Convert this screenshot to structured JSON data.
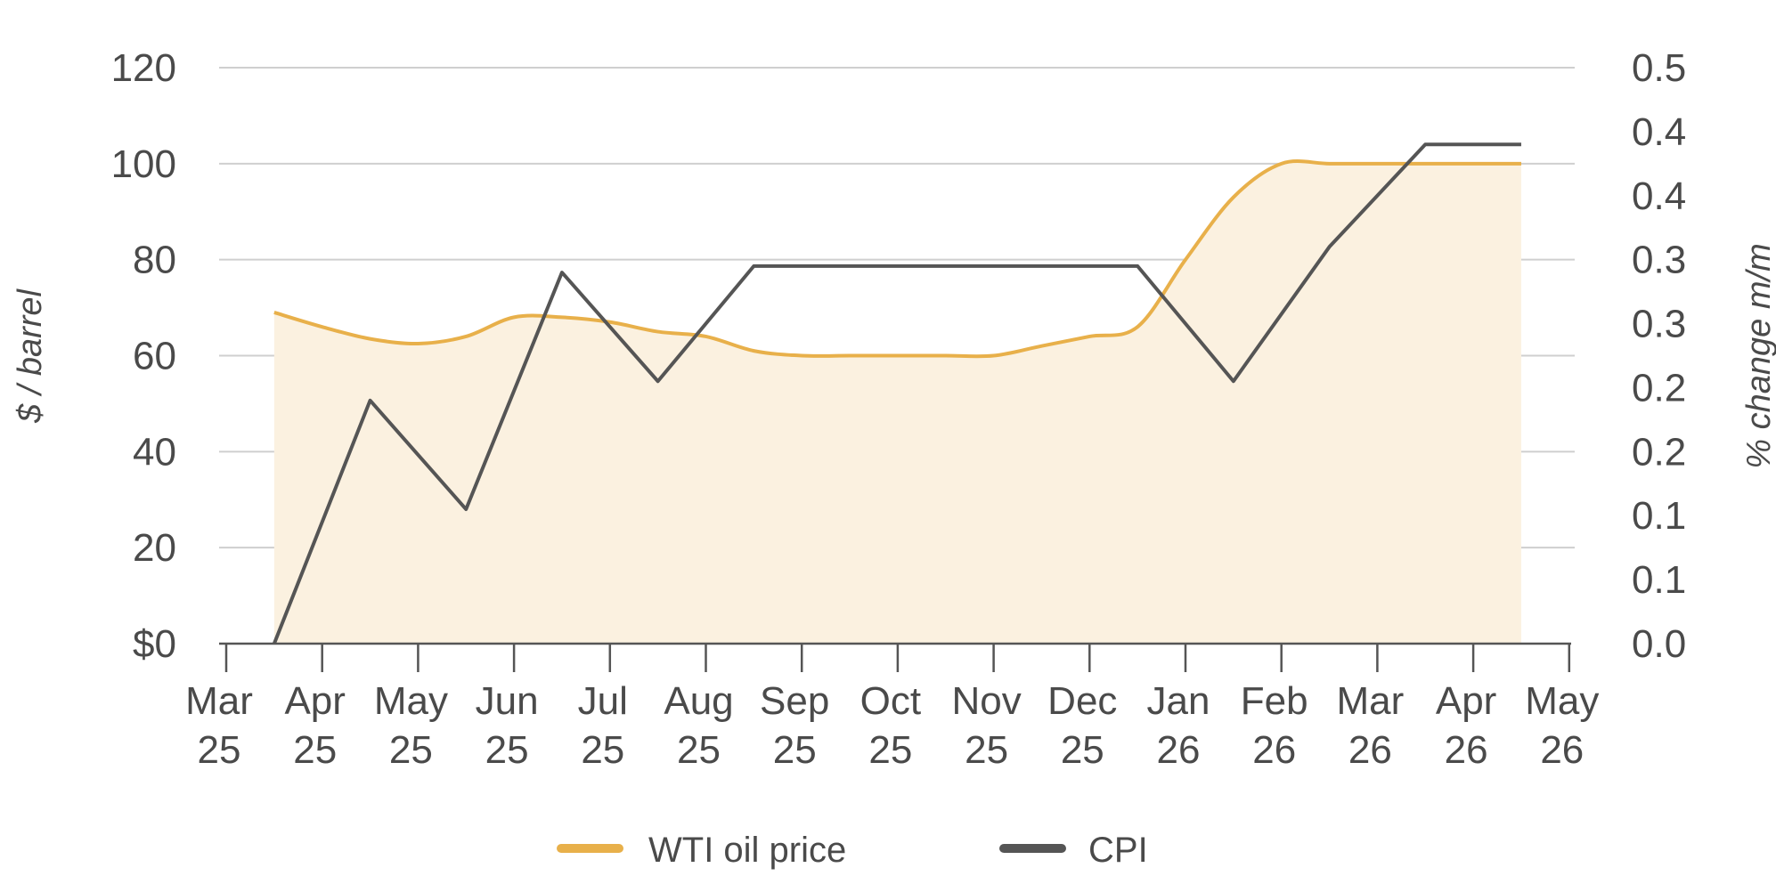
{
  "chart_data": {
    "type": "line",
    "x_labels": [
      [
        "Mar",
        "25"
      ],
      [
        "Apr",
        "25"
      ],
      [
        "May",
        "25"
      ],
      [
        "Jun",
        "25"
      ],
      [
        "Jul",
        "25"
      ],
      [
        "Aug",
        "25"
      ],
      [
        "Sep",
        "25"
      ],
      [
        "Oct",
        "25"
      ],
      [
        "Nov",
        "25"
      ],
      [
        "Dec",
        "25"
      ],
      [
        "Jan",
        "26"
      ],
      [
        "Feb",
        "26"
      ],
      [
        "Mar",
        "26"
      ],
      [
        "Apr",
        "26"
      ],
      [
        "May",
        "26"
      ]
    ],
    "y_left": {
      "label": "$ / barrel",
      "ticks": [
        "$0",
        "20",
        "40",
        "60",
        "80",
        "100",
        "120"
      ],
      "range": [
        0,
        120
      ]
    },
    "y_right": {
      "label": "% change m/m",
      "ticks": [
        "0.0",
        "0.1",
        "0.1",
        "0.2",
        "0.2",
        "0.3",
        "0.3",
        "0.4",
        "0.4",
        "0.5"
      ],
      "range": [
        0,
        0.45
      ]
    },
    "grid": true,
    "legend_position": "bottom-center",
    "series": [
      {
        "name": "WTI oil price",
        "axis": "left",
        "color": "#e8b04a",
        "fill": "#fbf1e0",
        "x": [
          0.5,
          1.0,
          1.5,
          2.0,
          2.5,
          3.0,
          3.5,
          4.0,
          4.5,
          5.0,
          5.5,
          6.0,
          6.5,
          7.0,
          7.5,
          8.0,
          8.5,
          9.0,
          9.5,
          10.0,
          10.5,
          11.0,
          11.5,
          12.0,
          12.5,
          13.0,
          13.5
        ],
        "values": [
          69,
          66,
          63.5,
          62.5,
          64,
          68,
          68,
          67,
          65,
          64,
          61,
          60,
          60,
          60,
          60,
          60,
          62,
          64,
          66,
          80,
          93,
          100,
          100,
          100,
          100,
          100,
          100
        ]
      },
      {
        "name": "CPI",
        "axis": "right",
        "color": "#555555",
        "x": [
          0.5,
          1.5,
          2.5,
          3.5,
          4.5,
          5.5,
          6.5,
          7.5,
          8.5,
          9.5,
          10.5,
          11.5,
          12.5,
          13.5
        ],
        "values": [
          0.0,
          0.19,
          0.105,
          0.29,
          0.205,
          0.295,
          0.295,
          0.295,
          0.295,
          0.295,
          0.205,
          0.31,
          0.39,
          0.39
        ]
      }
    ]
  }
}
